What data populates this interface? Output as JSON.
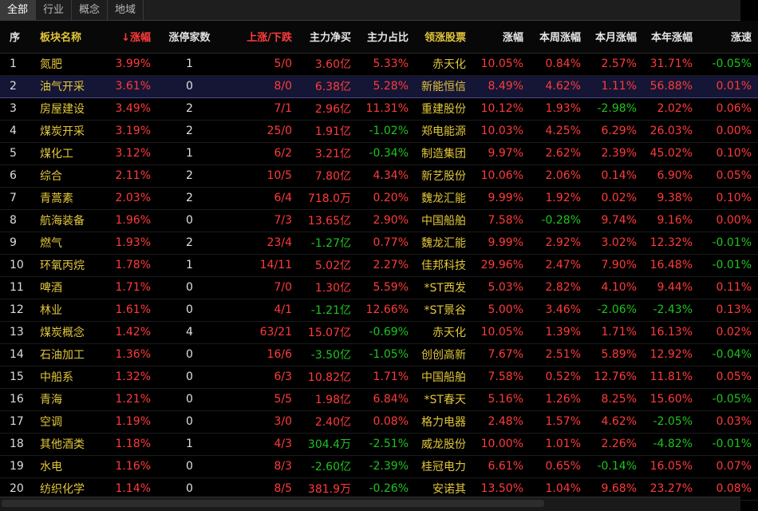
{
  "tabs": [
    "全部",
    "行业",
    "概念",
    "地域"
  ],
  "active_tab": 0,
  "headers": {
    "idx": "序",
    "name": "板块名称",
    "pct": "涨幅",
    "pct_prefix": "↓",
    "limit": "涨停家数",
    "updown": "上涨/下跌",
    "net": "主力净买",
    "ratio": "主力占比",
    "lead": "领涨股票",
    "chg": "涨幅",
    "week": "本周涨幅",
    "month": "本月涨幅",
    "year": "本年涨幅",
    "speed": "涨速"
  },
  "colors": {
    "up": "#ff3b3b",
    "down": "#1ec41e",
    "name": "#e2c63b",
    "bg": "#000000"
  },
  "rows": [
    {
      "idx": "1",
      "name": "氮肥",
      "pct": "3.99%",
      "limit": "1",
      "ud": "5/0",
      "net": "3.60亿",
      "net_dir": "up",
      "ratio": "5.33%",
      "ratio_dir": "up",
      "lead": "赤天化",
      "chg": "10.05%",
      "chg_dir": "up",
      "week": "0.84%",
      "week_dir": "up",
      "month": "2.57%",
      "month_dir": "up",
      "year": "31.71%",
      "year_dir": "up",
      "speed": "-0.05%",
      "speed_dir": "dn"
    },
    {
      "idx": "2",
      "name": "油气开采",
      "pct": "3.61%",
      "limit": "0",
      "ud": "8/0",
      "net": "6.38亿",
      "net_dir": "up",
      "ratio": "5.28%",
      "ratio_dir": "up",
      "lead": "新能恒信",
      "chg": "8.49%",
      "chg_dir": "up",
      "week": "4.62%",
      "week_dir": "up",
      "month": "1.11%",
      "month_dir": "up",
      "year": "56.88%",
      "year_dir": "up",
      "speed": "0.01%",
      "speed_dir": "up"
    },
    {
      "idx": "3",
      "name": "房屋建设",
      "pct": "3.49%",
      "limit": "2",
      "ud": "7/1",
      "net": "2.96亿",
      "net_dir": "up",
      "ratio": "11.31%",
      "ratio_dir": "up",
      "lead": "重建股份",
      "chg": "10.12%",
      "chg_dir": "up",
      "week": "1.93%",
      "week_dir": "up",
      "month": "-2.98%",
      "month_dir": "dn",
      "year": "2.02%",
      "year_dir": "up",
      "speed": "0.06%",
      "speed_dir": "up"
    },
    {
      "idx": "4",
      "name": "煤炭开采",
      "pct": "3.19%",
      "limit": "2",
      "ud": "25/0",
      "net": "1.91亿",
      "net_dir": "up",
      "ratio": "-1.02%",
      "ratio_dir": "dn",
      "lead": "郑电能源",
      "chg": "10.03%",
      "chg_dir": "up",
      "week": "4.25%",
      "week_dir": "up",
      "month": "6.29%",
      "month_dir": "up",
      "year": "26.03%",
      "year_dir": "up",
      "speed": "0.00%",
      "speed_dir": "up"
    },
    {
      "idx": "5",
      "name": "煤化工",
      "pct": "3.12%",
      "limit": "1",
      "ud": "6/2",
      "net": "3.21亿",
      "net_dir": "up",
      "ratio": "-0.34%",
      "ratio_dir": "dn",
      "lead": "制造集团",
      "chg": "9.97%",
      "chg_dir": "up",
      "week": "2.62%",
      "week_dir": "up",
      "month": "2.39%",
      "month_dir": "up",
      "year": "45.02%",
      "year_dir": "up",
      "speed": "0.10%",
      "speed_dir": "up"
    },
    {
      "idx": "6",
      "name": "综合",
      "pct": "2.11%",
      "limit": "2",
      "ud": "10/5",
      "net": "7.80亿",
      "net_dir": "up",
      "ratio": "4.34%",
      "ratio_dir": "up",
      "lead": "新艺股份",
      "chg": "10.06%",
      "chg_dir": "up",
      "week": "2.06%",
      "week_dir": "up",
      "month": "0.14%",
      "month_dir": "up",
      "year": "6.90%",
      "year_dir": "up",
      "speed": "0.05%",
      "speed_dir": "up"
    },
    {
      "idx": "7",
      "name": "青蒿素",
      "pct": "2.03%",
      "limit": "2",
      "ud": "6/4",
      "net": "718.0万",
      "net_dir": "up",
      "ratio": "0.20%",
      "ratio_dir": "up",
      "lead": "魏龙汇能",
      "chg": "9.99%",
      "chg_dir": "up",
      "week": "1.92%",
      "week_dir": "up",
      "month": "0.02%",
      "month_dir": "up",
      "year": "9.38%",
      "year_dir": "up",
      "speed": "0.10%",
      "speed_dir": "up"
    },
    {
      "idx": "8",
      "name": "航海装备",
      "pct": "1.96%",
      "limit": "0",
      "ud": "7/3",
      "net": "13.65亿",
      "net_dir": "up",
      "ratio": "2.90%",
      "ratio_dir": "up",
      "lead": "中国船舶",
      "chg": "7.58%",
      "chg_dir": "up",
      "week": "-0.28%",
      "week_dir": "dn",
      "month": "9.74%",
      "month_dir": "up",
      "year": "9.16%",
      "year_dir": "up",
      "speed": "0.00%",
      "speed_dir": "up"
    },
    {
      "idx": "9",
      "name": "燃气",
      "pct": "1.93%",
      "limit": "2",
      "ud": "23/4",
      "net": "-1.27亿",
      "net_dir": "dn",
      "ratio": "0.77%",
      "ratio_dir": "up",
      "lead": "魏龙汇能",
      "chg": "9.99%",
      "chg_dir": "up",
      "week": "2.92%",
      "week_dir": "up",
      "month": "3.02%",
      "month_dir": "up",
      "year": "12.32%",
      "year_dir": "up",
      "speed": "-0.01%",
      "speed_dir": "dn"
    },
    {
      "idx": "10",
      "name": "环氧丙烷",
      "pct": "1.78%",
      "limit": "1",
      "ud": "14/11",
      "net": "5.02亿",
      "net_dir": "up",
      "ratio": "2.27%",
      "ratio_dir": "up",
      "lead": "佳邦科技",
      "chg": "29.96%",
      "chg_dir": "up",
      "week": "2.47%",
      "week_dir": "up",
      "month": "7.90%",
      "month_dir": "up",
      "year": "16.48%",
      "year_dir": "up",
      "speed": "-0.01%",
      "speed_dir": "dn"
    },
    {
      "idx": "11",
      "name": "啤酒",
      "pct": "1.71%",
      "limit": "0",
      "ud": "7/0",
      "net": "1.30亿",
      "net_dir": "up",
      "ratio": "5.59%",
      "ratio_dir": "up",
      "lead": "*ST西发",
      "chg": "5.03%",
      "chg_dir": "up",
      "week": "2.82%",
      "week_dir": "up",
      "month": "4.10%",
      "month_dir": "up",
      "year": "9.44%",
      "year_dir": "up",
      "speed": "0.11%",
      "speed_dir": "up"
    },
    {
      "idx": "12",
      "name": "林业",
      "pct": "1.61%",
      "limit": "0",
      "ud": "4/1",
      "net": "-1.21亿",
      "net_dir": "dn",
      "ratio": "12.66%",
      "ratio_dir": "up",
      "lead": "*ST景谷",
      "chg": "5.00%",
      "chg_dir": "up",
      "week": "3.46%",
      "week_dir": "up",
      "month": "-2.06%",
      "month_dir": "dn",
      "year": "-2.43%",
      "year_dir": "dn",
      "speed": "0.13%",
      "speed_dir": "up"
    },
    {
      "idx": "13",
      "name": "煤炭概念",
      "pct": "1.42%",
      "limit": "4",
      "ud": "63/21",
      "net": "15.07亿",
      "net_dir": "up",
      "ratio": "-0.69%",
      "ratio_dir": "dn",
      "lead": "赤天化",
      "chg": "10.05%",
      "chg_dir": "up",
      "week": "1.39%",
      "week_dir": "up",
      "month": "1.71%",
      "month_dir": "up",
      "year": "16.13%",
      "year_dir": "up",
      "speed": "0.02%",
      "speed_dir": "up"
    },
    {
      "idx": "14",
      "name": "石油加工",
      "pct": "1.36%",
      "limit": "0",
      "ud": "16/6",
      "net": "-3.50亿",
      "net_dir": "dn",
      "ratio": "-1.05%",
      "ratio_dir": "dn",
      "lead": "创创高新",
      "chg": "7.67%",
      "chg_dir": "up",
      "week": "2.51%",
      "week_dir": "up",
      "month": "5.89%",
      "month_dir": "up",
      "year": "12.92%",
      "year_dir": "up",
      "speed": "-0.04%",
      "speed_dir": "dn"
    },
    {
      "idx": "15",
      "name": "中船系",
      "pct": "1.32%",
      "limit": "0",
      "ud": "6/3",
      "net": "10.82亿",
      "net_dir": "up",
      "ratio": "1.71%",
      "ratio_dir": "up",
      "lead": "中国船舶",
      "chg": "7.58%",
      "chg_dir": "up",
      "week": "0.52%",
      "week_dir": "up",
      "month": "12.76%",
      "month_dir": "up",
      "year": "11.81%",
      "year_dir": "up",
      "speed": "0.05%",
      "speed_dir": "up"
    },
    {
      "idx": "16",
      "name": "青海",
      "pct": "1.21%",
      "limit": "0",
      "ud": "5/5",
      "net": "1.98亿",
      "net_dir": "up",
      "ratio": "6.84%",
      "ratio_dir": "up",
      "lead": "*ST春天",
      "chg": "5.16%",
      "chg_dir": "up",
      "week": "1.26%",
      "week_dir": "up",
      "month": "8.25%",
      "month_dir": "up",
      "year": "15.60%",
      "year_dir": "up",
      "speed": "-0.05%",
      "speed_dir": "dn"
    },
    {
      "idx": "17",
      "name": "空调",
      "pct": "1.19%",
      "limit": "0",
      "ud": "3/0",
      "net": "2.40亿",
      "net_dir": "up",
      "ratio": "0.08%",
      "ratio_dir": "up",
      "lead": "格力电器",
      "chg": "2.48%",
      "chg_dir": "up",
      "week": "1.57%",
      "week_dir": "up",
      "month": "4.62%",
      "month_dir": "up",
      "year": "-2.05%",
      "year_dir": "dn",
      "speed": "0.03%",
      "speed_dir": "up"
    },
    {
      "idx": "18",
      "name": "其他酒类",
      "pct": "1.18%",
      "limit": "1",
      "ud": "4/3",
      "net": "304.4万",
      "net_dir": "dn",
      "ratio": "-2.51%",
      "ratio_dir": "dn",
      "lead": "威龙股份",
      "chg": "10.00%",
      "chg_dir": "up",
      "week": "1.01%",
      "week_dir": "up",
      "month": "2.26%",
      "month_dir": "up",
      "year": "-4.82%",
      "year_dir": "dn",
      "speed": "-0.01%",
      "speed_dir": "dn"
    },
    {
      "idx": "19",
      "name": "水电",
      "pct": "1.16%",
      "limit": "0",
      "ud": "8/3",
      "net": "-2.60亿",
      "net_dir": "dn",
      "ratio": "-2.39%",
      "ratio_dir": "dn",
      "lead": "桂冠电力",
      "chg": "6.61%",
      "chg_dir": "up",
      "week": "0.65%",
      "week_dir": "up",
      "month": "-0.14%",
      "month_dir": "dn",
      "year": "16.05%",
      "year_dir": "up",
      "speed": "0.07%",
      "speed_dir": "up"
    },
    {
      "idx": "20",
      "name": "纺织化学",
      "pct": "1.14%",
      "limit": "0",
      "ud": "8/5",
      "net": "381.9万",
      "net_dir": "up",
      "ratio": "-0.26%",
      "ratio_dir": "dn",
      "lead": "安诺其",
      "chg": "13.50%",
      "chg_dir": "up",
      "week": "1.04%",
      "week_dir": "up",
      "month": "9.68%",
      "month_dir": "up",
      "year": "23.27%",
      "year_dir": "up",
      "speed": "0.08%",
      "speed_dir": "up"
    }
  ]
}
